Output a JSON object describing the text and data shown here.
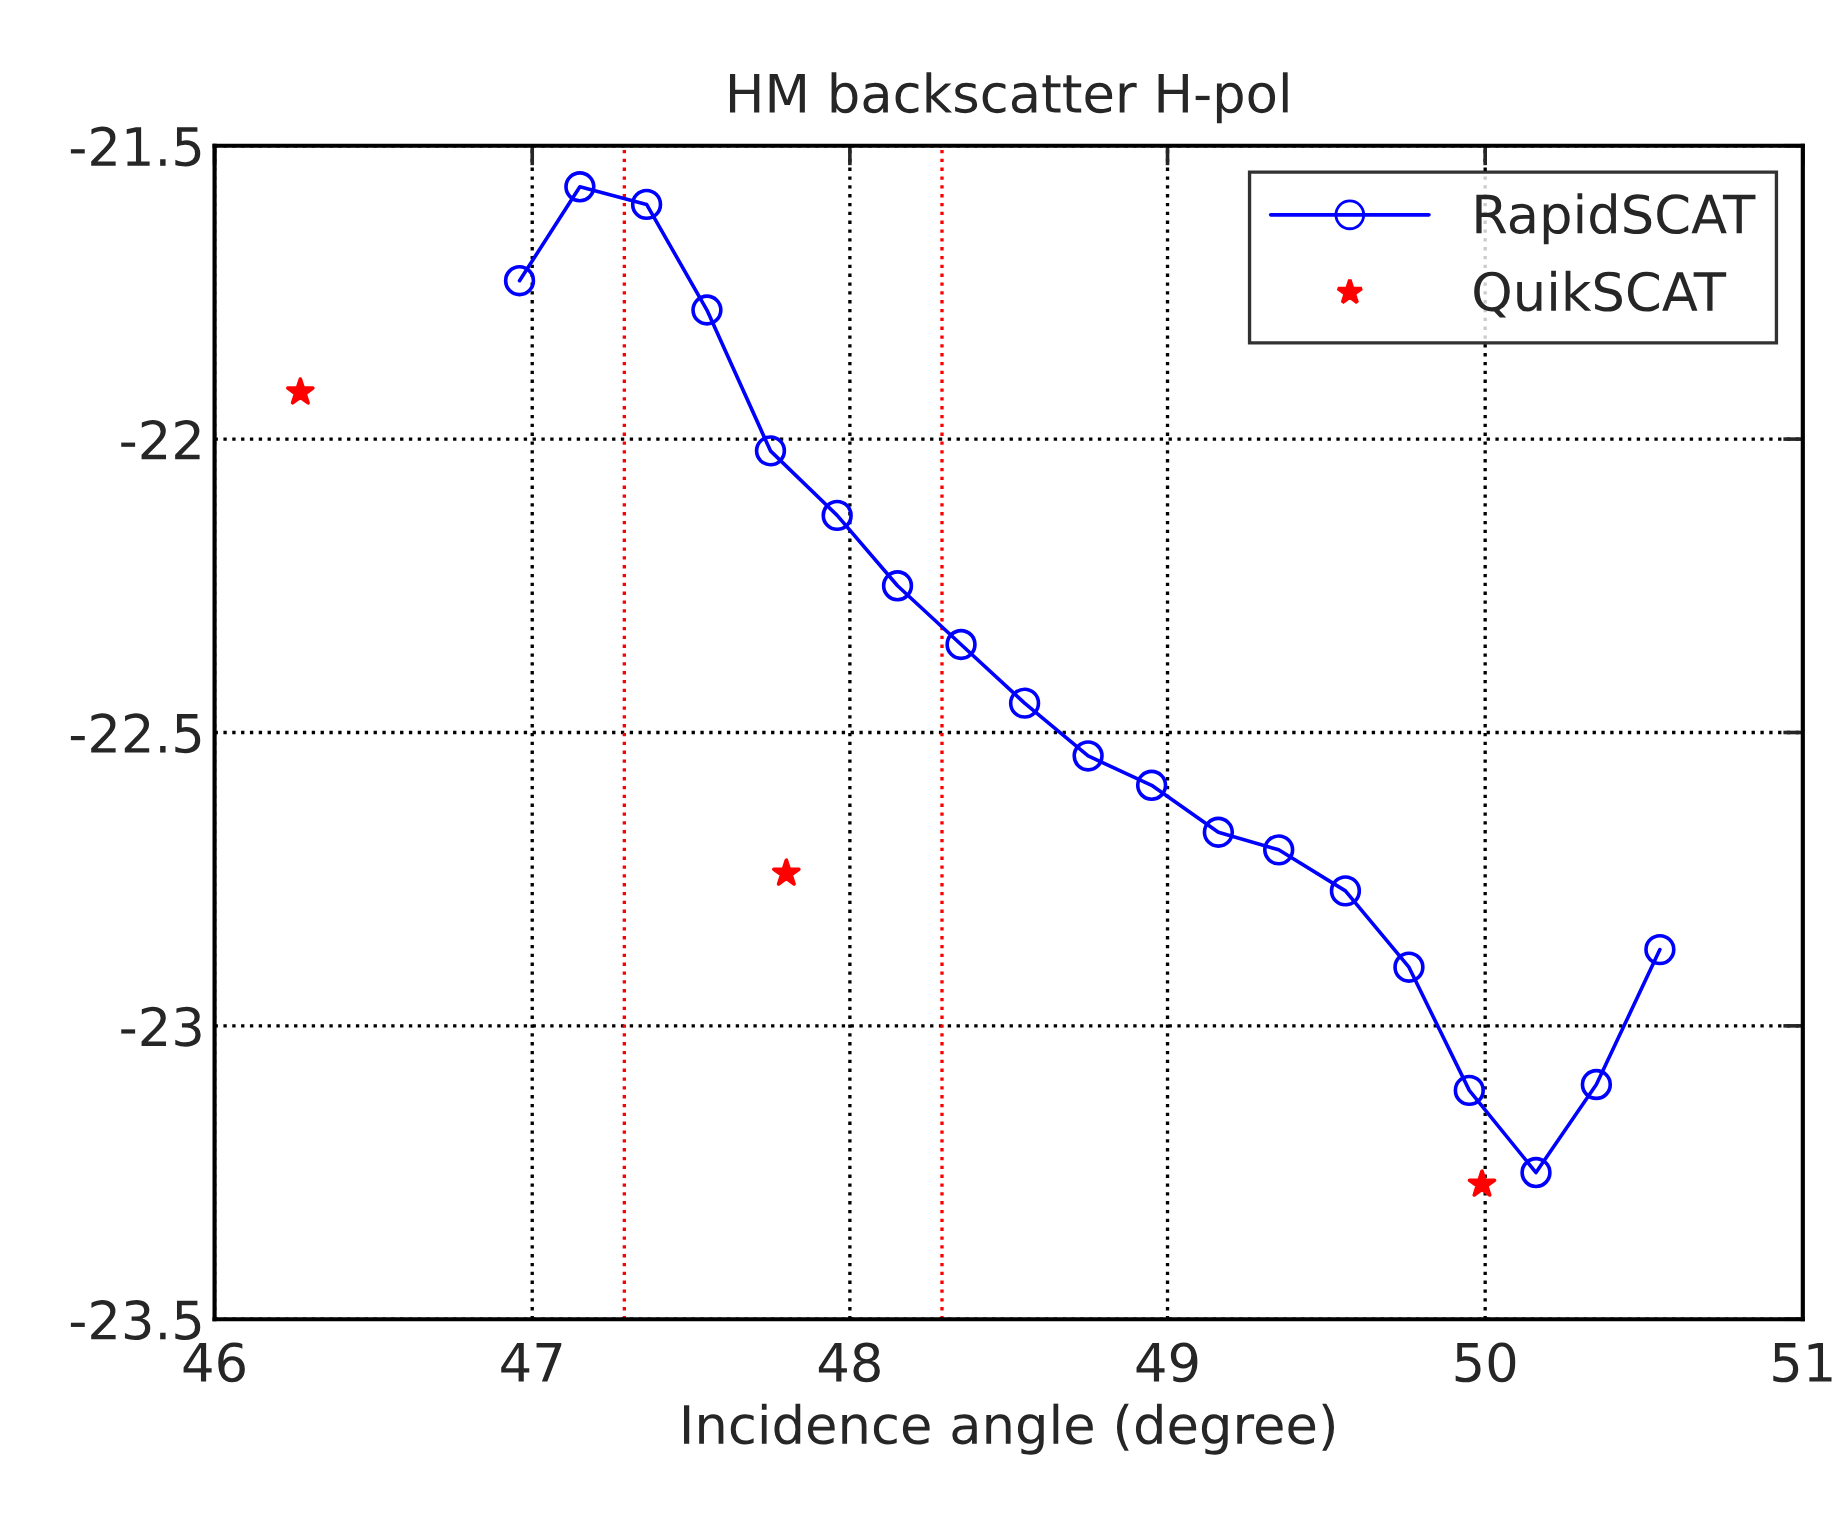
{
  "chart_data": {
    "type": "line",
    "title": "HM backscatter H-pol",
    "xlabel": "Incidence angle (degree)",
    "series": [
      {
        "name": "RapidSCAT",
        "color": "#0000ff",
        "marker": "circle",
        "line_style": "solid",
        "x": [
          46.96,
          47.15,
          47.36,
          47.55,
          47.75,
          47.96,
          48.15,
          48.35,
          48.55,
          48.75,
          48.95,
          49.16,
          49.35,
          49.56,
          49.76,
          49.95,
          50.16,
          50.35,
          50.55
        ],
        "values": [
          -21.73,
          -21.57,
          -21.6,
          -21.78,
          -22.02,
          -22.13,
          -22.25,
          -22.35,
          -22.45,
          -22.54,
          -22.59,
          -22.67,
          -22.7,
          -22.77,
          -22.9,
          -23.11,
          -23.25,
          -23.1,
          -22.87
        ]
      },
      {
        "name": "QuikSCAT",
        "type": "scatter",
        "color": "#ff0000",
        "marker": "star",
        "x": [
          46.27,
          47.8,
          49.99
        ],
        "values": [
          -21.92,
          -22.74,
          -23.27
        ]
      }
    ],
    "ref_lines": [
      {
        "axis": "x",
        "value": 47.29,
        "color": "#ff0000",
        "line_style": "dotted"
      },
      {
        "axis": "x",
        "value": 48.29,
        "color": "#ff0000",
        "line_style": "dotted"
      }
    ],
    "xlim": [
      46,
      51
    ],
    "xticks": [
      46,
      47,
      48,
      49,
      50,
      51
    ],
    "ylim": [
      -23.5,
      -21.5
    ],
    "yticks": [
      -23.5,
      -23,
      -22.5,
      -22,
      -21.5
    ],
    "grid": true,
    "legend": "top right"
  }
}
